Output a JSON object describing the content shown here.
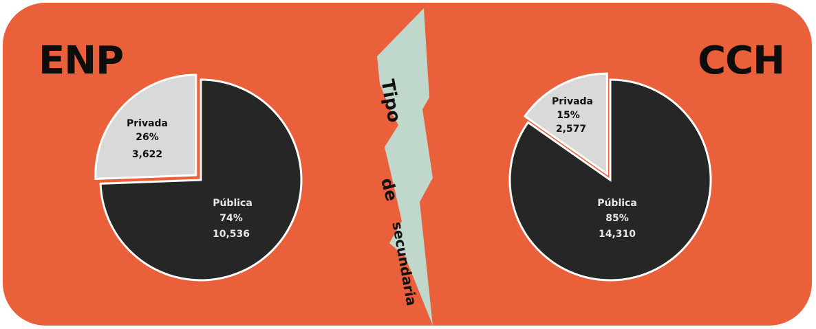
{
  "colors": {
    "background": "#e9603b",
    "publica": "#262626",
    "privada": "#d9d9d9",
    "separator": "#c0d8cc",
    "border": "#ffffff"
  },
  "center_label": [
    "Tipo",
    "de",
    "secundaria"
  ],
  "chart_data": [
    {
      "type": "pie",
      "title": "ENP",
      "categories": [
        "Privada",
        "Pública"
      ],
      "values": [
        3622,
        10536
      ],
      "percentages": [
        "26%",
        "74%"
      ],
      "value_labels": [
        "3,622",
        "10,536"
      ]
    },
    {
      "type": "pie",
      "title": "CCH",
      "categories": [
        "Privada",
        "Pública"
      ],
      "values": [
        2577,
        14310
      ],
      "percentages": [
        "15%",
        "85%"
      ],
      "value_labels": [
        "2,577",
        "14,310"
      ]
    }
  ]
}
